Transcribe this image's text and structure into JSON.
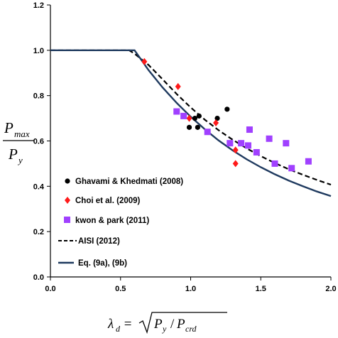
{
  "chart_data": {
    "type": "scatter",
    "xlim": [
      0,
      2.0
    ],
    "ylim": [
      0,
      1.2
    ],
    "xticks": [
      "0.0",
      "0.5",
      "1.0",
      "1.5",
      "2.0"
    ],
    "yticks": [
      "0.0",
      "0.2",
      "0.4",
      "0.6",
      "0.8",
      "1.0",
      "1.2"
    ],
    "ylabel": {
      "main": "P",
      "main_sub": "max",
      "den": "P",
      "den_sub": "y"
    },
    "xlabel": {
      "lhs": "λ",
      "lhs_sub": "d",
      "eq": " = ",
      "num": "P",
      "num_sub": "y",
      "slash": "/",
      "den": "P",
      "den_sub": "crd"
    },
    "grid": false,
    "legend_position": "lower-left",
    "colors": {
      "ghavami": "#000000",
      "choi": "#ff1a1a",
      "kwon": "#a040ff",
      "aisi": "#000000",
      "eq": "#1f3a5f"
    },
    "series": [
      {
        "name": "Ghavami & Khedmati (2008)",
        "marker": "circle",
        "points": [
          [
            0.99,
            0.66
          ],
          [
            1.03,
            0.7
          ],
          [
            1.06,
            0.71
          ],
          [
            1.05,
            0.66
          ],
          [
            1.19,
            0.7
          ],
          [
            1.26,
            0.74
          ]
        ]
      },
      {
        "name": "Choi et al. (2009)",
        "marker": "diamond",
        "points": [
          [
            0.67,
            0.95
          ],
          [
            0.91,
            0.84
          ],
          [
            0.99,
            0.7
          ],
          [
            1.18,
            0.68
          ],
          [
            1.32,
            0.56
          ],
          [
            1.32,
            0.5
          ]
        ]
      },
      {
        "name": "kwon & park (2011)",
        "marker": "square",
        "points": [
          [
            0.9,
            0.73
          ],
          [
            0.95,
            0.71
          ],
          [
            1.12,
            0.64
          ],
          [
            1.28,
            0.59
          ],
          [
            1.36,
            0.59
          ],
          [
            1.41,
            0.58
          ],
          [
            1.42,
            0.65
          ],
          [
            1.47,
            0.55
          ],
          [
            1.56,
            0.61
          ],
          [
            1.6,
            0.5
          ],
          [
            1.68,
            0.59
          ],
          [
            1.72,
            0.48
          ],
          [
            1.84,
            0.51
          ]
        ]
      },
      {
        "name": "AISI (2012)",
        "line": "dashed",
        "x": [
          0.0,
          0.561,
          0.6,
          0.7,
          0.8,
          0.9,
          1.0,
          1.1,
          1.2,
          1.3,
          1.4,
          1.5,
          1.6,
          1.7,
          1.8,
          1.9,
          2.0
        ],
        "y": [
          1.0,
          1.0,
          0.985,
          0.935,
          0.872,
          0.807,
          0.748,
          0.694,
          0.647,
          0.605,
          0.567,
          0.533,
          0.503,
          0.475,
          0.451,
          0.428,
          0.407
        ]
      },
      {
        "name": "Eq. (9a), (9b)",
        "line": "solid",
        "x": [
          0.0,
          0.6,
          0.7,
          0.8,
          0.9,
          1.0,
          1.1,
          1.2,
          1.3,
          1.4,
          1.5,
          1.6,
          1.7,
          1.8,
          1.9,
          2.0
        ],
        "y": [
          1.0,
          1.0,
          0.912,
          0.836,
          0.768,
          0.707,
          0.652,
          0.602,
          0.558,
          0.519,
          0.484,
          0.453,
          0.425,
          0.4,
          0.377,
          0.357
        ]
      }
    ]
  }
}
